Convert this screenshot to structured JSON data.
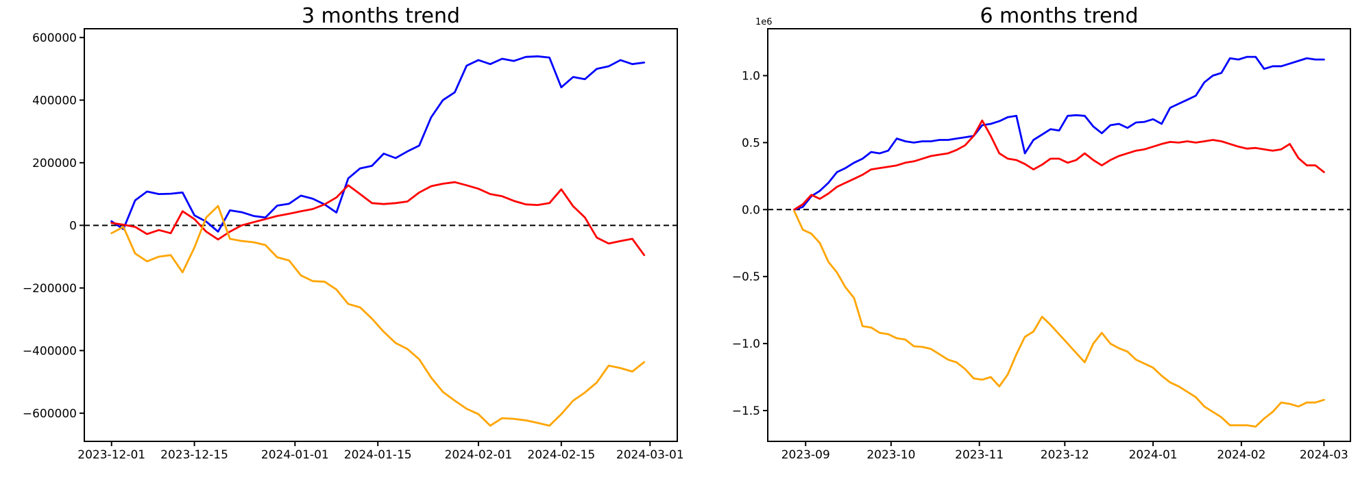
{
  "figure": {
    "background_color": "#ffffff",
    "text_color": "#000000",
    "axis_color": "#000000"
  },
  "chart_data": [
    {
      "type": "line",
      "title": "3 months trend",
      "xlabel": "",
      "ylabel": "",
      "x_unit": "days since 2023-12-01",
      "x_start": 0,
      "x_step": 2,
      "xlim": [
        -4.6,
        95.6
      ],
      "ylim": [
        -690000,
        628000
      ],
      "value_scale": 1,
      "grid": false,
      "legend": "none",
      "y_offset_text": "",
      "x_tick_positions": [
        0,
        14,
        31,
        45,
        62,
        76,
        91
      ],
      "x_tick_labels": [
        "2023-12-01",
        "2023-12-15",
        "2024-01-01",
        "2024-01-15",
        "2024-02-01",
        "2024-02-15",
        "2024-03-01"
      ],
      "y_tick_values": [
        600000,
        400000,
        200000,
        0,
        -200000,
        -400000,
        -600000
      ],
      "y_tick_labels": [
        "600000",
        "400000",
        "200000",
        "0",
        "−200000",
        "−400000",
        "−600000"
      ],
      "zero_line": {
        "value": 0,
        "style": "dashed",
        "color": "#000000"
      },
      "series": [
        {
          "name": "blue",
          "color": "#0000ff",
          "values": [
            13000,
            -12000,
            80000,
            108000,
            100000,
            101000,
            105000,
            32000,
            12000,
            -20000,
            48000,
            42000,
            30000,
            25000,
            63000,
            69000,
            95000,
            85000,
            67000,
            41000,
            150000,
            182000,
            190000,
            229000,
            215000,
            236000,
            255000,
            345000,
            400000,
            425000,
            510000,
            528000,
            515000,
            532000,
            525000,
            538000,
            540000,
            536000,
            441000,
            474000,
            467000,
            500000,
            508000,
            528000,
            515000,
            520000
          ]
        },
        {
          "name": "red",
          "color": "#ff0000",
          "values": [
            8000,
            2000,
            -5000,
            -28000,
            -15000,
            -25000,
            45000,
            20000,
            -20000,
            -45000,
            -20000,
            0,
            10000,
            20000,
            30000,
            37000,
            45000,
            52000,
            67000,
            89000,
            128000,
            100000,
            71000,
            68000,
            71000,
            76000,
            105000,
            125000,
            133000,
            138000,
            128000,
            117000,
            100000,
            93000,
            78000,
            67000,
            65000,
            71000,
            115000,
            61000,
            25000,
            -39000,
            -58000,
            -50000,
            -43000,
            -95000
          ]
        },
        {
          "name": "orange",
          "color": "#ffa500",
          "values": [
            -25000,
            -5000,
            -90000,
            -115000,
            -100000,
            -95000,
            -150000,
            -71000,
            25000,
            62000,
            -43000,
            -50000,
            -54000,
            -63000,
            -102000,
            -112000,
            -160000,
            -178000,
            -180000,
            -205000,
            -251000,
            -262000,
            -298000,
            -340000,
            -376000,
            -395000,
            -428000,
            -486000,
            -532000,
            -560000,
            -586000,
            -603000,
            -640000,
            -616000,
            -618000,
            -623000,
            -631000,
            -640000,
            -603000,
            -560000,
            -534000,
            -502000,
            -448000,
            -456000,
            -467000,
            -437000
          ]
        }
      ]
    },
    {
      "type": "line",
      "title": "6 months trend",
      "xlabel": "",
      "ylabel": "",
      "x_unit": "days since 2023-08-28",
      "x_start": 0,
      "x_step": 3,
      "xlim": [
        -9.3,
        195.3
      ],
      "ylim": [
        -1.73,
        1.35
      ],
      "value_scale": 1,
      "grid": false,
      "legend": "none",
      "y_offset_text": "1e6",
      "x_tick_positions": [
        4,
        34,
        65,
        95,
        126,
        157,
        186
      ],
      "x_tick_labels": [
        "2023-09",
        "2023-10",
        "2023-11",
        "2023-12",
        "2024-01",
        "2024-02",
        "2024-03"
      ],
      "y_tick_values": [
        1.0,
        0.5,
        0.0,
        -0.5,
        -1.0,
        -1.5
      ],
      "y_tick_labels": [
        "1.0",
        "0.5",
        "0.0",
        "−0.5",
        "−1.0",
        "−1.5"
      ],
      "zero_line": {
        "value": 0,
        "style": "dashed",
        "color": "#000000"
      },
      "series": [
        {
          "name": "blue",
          "color": "#0000ff",
          "values": [
            0.0,
            0.02,
            0.1,
            0.14,
            0.2,
            0.28,
            0.31,
            0.35,
            0.38,
            0.43,
            0.42,
            0.44,
            0.53,
            0.51,
            0.5,
            0.51,
            0.51,
            0.52,
            0.52,
            0.53,
            0.54,
            0.55,
            0.63,
            0.64,
            0.66,
            0.69,
            0.7,
            0.42,
            0.52,
            0.56,
            0.6,
            0.59,
            0.7,
            0.705,
            0.7,
            0.62,
            0.57,
            0.63,
            0.64,
            0.61,
            0.65,
            0.655,
            0.675,
            0.64,
            0.76,
            0.79,
            0.82,
            0.85,
            0.95,
            1.0,
            1.02,
            1.13,
            1.12,
            1.14,
            1.14,
            1.05,
            1.07,
            1.07,
            1.09,
            1.11,
            1.13,
            1.12,
            1.12
          ]
        },
        {
          "name": "red",
          "color": "#ff0000",
          "values": [
            0.0,
            0.04,
            0.11,
            0.08,
            0.12,
            0.17,
            0.2,
            0.23,
            0.26,
            0.3,
            0.31,
            0.32,
            0.33,
            0.35,
            0.36,
            0.38,
            0.4,
            0.41,
            0.42,
            0.445,
            0.48,
            0.55,
            0.665,
            0.55,
            0.42,
            0.38,
            0.37,
            0.34,
            0.3,
            0.335,
            0.38,
            0.38,
            0.35,
            0.37,
            0.42,
            0.37,
            0.33,
            0.37,
            0.4,
            0.42,
            0.44,
            0.45,
            0.47,
            0.49,
            0.505,
            0.5,
            0.51,
            0.5,
            0.51,
            0.52,
            0.51,
            0.49,
            0.47,
            0.455,
            0.46,
            0.45,
            0.44,
            0.45,
            0.49,
            0.385,
            0.33,
            0.33,
            0.28
          ]
        },
        {
          "name": "orange",
          "color": "#ffa500",
          "values": [
            -0.01,
            -0.15,
            -0.18,
            -0.25,
            -0.39,
            -0.47,
            -0.58,
            -0.66,
            -0.87,
            -0.88,
            -0.92,
            -0.93,
            -0.96,
            -0.97,
            -1.02,
            -1.025,
            -1.04,
            -1.08,
            -1.12,
            -1.14,
            -1.19,
            -1.26,
            -1.27,
            -1.25,
            -1.32,
            -1.23,
            -1.08,
            -0.95,
            -0.91,
            -0.8,
            -0.86,
            -0.93,
            -1.0,
            -1.07,
            -1.14,
            -1.0,
            -0.92,
            -1.0,
            -1.035,
            -1.06,
            -1.12,
            -1.15,
            -1.18,
            -1.24,
            -1.29,
            -1.32,
            -1.36,
            -1.4,
            -1.47,
            -1.51,
            -1.55,
            -1.61,
            -1.61,
            -1.61,
            -1.62,
            -1.56,
            -1.51,
            -1.44,
            -1.45,
            -1.47,
            -1.44,
            -1.44,
            -1.42
          ]
        }
      ]
    }
  ]
}
